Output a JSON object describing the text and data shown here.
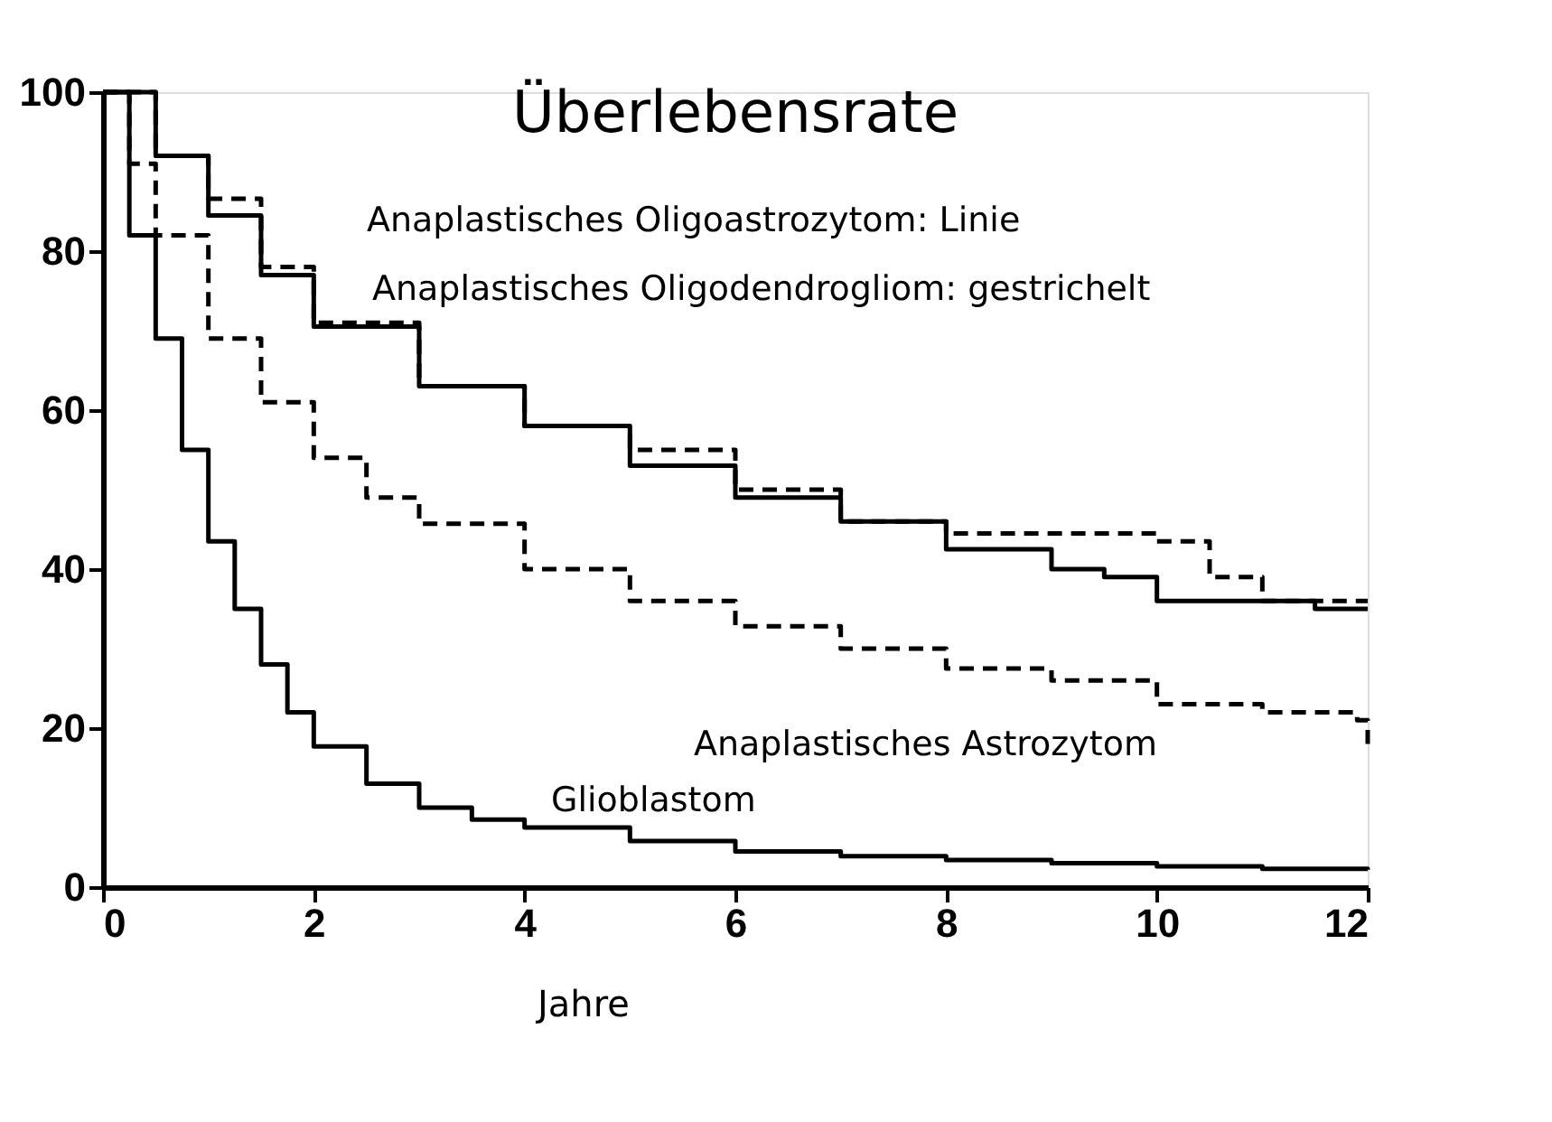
{
  "chart_data": {
    "type": "step",
    "title": "Überlebensrate",
    "xlabel": "Jahre",
    "xlim": [
      0,
      12
    ],
    "xticks": [
      0,
      2,
      4,
      6,
      8,
      10,
      12
    ],
    "ylim": [
      0,
      100
    ],
    "yticks": [
      0,
      20,
      40,
      60,
      80,
      100
    ],
    "grid": false,
    "marker": "none",
    "series": [
      {
        "name": "Glioblastom",
        "color": "#000000",
        "line_style": "solid",
        "x": [
          0,
          0.25,
          0.5,
          0.75,
          1,
          1.25,
          1.5,
          1.75,
          2,
          2.5,
          3,
          3.5,
          4,
          5,
          6,
          7,
          8,
          9,
          10,
          11,
          12
        ],
        "values": [
          100,
          82,
          69,
          55,
          43.5,
          35,
          28,
          22,
          17.7,
          13,
          10,
          8.5,
          7.5,
          5.8,
          4.5,
          3.9,
          3.4,
          3,
          2.6,
          2.3,
          2.2
        ]
      },
      {
        "name": "Anaplastisches Astrozytom",
        "color": "#000000",
        "line_style": "dashed",
        "x": [
          0,
          0.25,
          0.5,
          1,
          1.5,
          2,
          2.5,
          3,
          4,
          5,
          6,
          7,
          8,
          9,
          10,
          11,
          11.9,
          12
        ],
        "values": [
          100,
          91,
          82,
          69,
          61,
          54,
          49,
          45.7,
          40,
          36,
          32.8,
          30,
          27.5,
          26,
          23,
          22,
          21,
          18
        ]
      },
      {
        "name": "Anaplastisches Oligoastrozytom: Linie",
        "color": "#000000",
        "line_style": "solid",
        "x": [
          0,
          0.5,
          1,
          1.5,
          2,
          3,
          4,
          5,
          6,
          7,
          8,
          9,
          9.5,
          10,
          11,
          11.5,
          12
        ],
        "values": [
          100,
          92,
          84.5,
          77,
          70.5,
          63,
          58,
          53,
          49,
          46,
          42.5,
          40,
          39,
          36,
          36,
          35,
          35
        ]
      },
      {
        "name": "Anaplastisches Oligodendrogliom: gestrichelt",
        "color": "#000000",
        "line_style": "dashed",
        "x": [
          0,
          0.5,
          1,
          1.5,
          2,
          3,
          4,
          5,
          6,
          7,
          8,
          9,
          10,
          10.5,
          11,
          12
        ],
        "values": [
          100,
          92,
          86.6,
          78,
          71,
          63,
          58,
          55,
          50,
          46,
          44.5,
          44.5,
          43.5,
          39,
          36,
          36
        ]
      }
    ]
  }
}
